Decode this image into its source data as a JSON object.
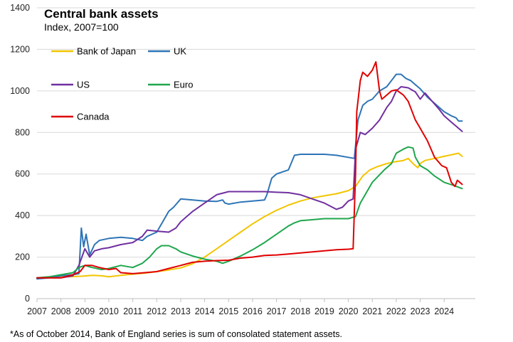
{
  "chart_data": {
    "type": "line",
    "title": "Central bank assets",
    "subtitle": "Index, 2007=100",
    "footnote": "*As of October 2014,  Bank of England series is sum of consolated statement assets.",
    "xlabel": "",
    "ylabel": "",
    "xlim": [
      2007,
      2025.3
    ],
    "ylim": [
      0,
      1400
    ],
    "x_ticks": [
      "2007",
      "2008",
      "2009",
      "2010",
      "2011",
      "2012",
      "2013",
      "2014",
      "2015",
      "2016",
      "2017",
      "2018",
      "2019",
      "2020",
      "2021",
      "2022",
      "2023",
      "2024"
    ],
    "y_ticks": [
      "0",
      "200",
      "400",
      "600",
      "800",
      "1000",
      "1200",
      "1400"
    ],
    "grid": "horizontal",
    "legend_position": "top-left",
    "series": [
      {
        "name": "Bank of Japan",
        "color": "#F2C500",
        "points": [
          [
            2007.0,
            100
          ],
          [
            2007.5,
            102
          ],
          [
            2008.0,
            104
          ],
          [
            2008.5,
            106
          ],
          [
            2008.9,
            108
          ],
          [
            2009.3,
            112
          ],
          [
            2009.7,
            110
          ],
          [
            2010.0,
            105
          ],
          [
            2010.5,
            112
          ],
          [
            2011.0,
            118
          ],
          [
            2011.5,
            123
          ],
          [
            2012.0,
            130
          ],
          [
            2012.5,
            138
          ],
          [
            2013.0,
            148
          ],
          [
            2013.5,
            168
          ],
          [
            2014.0,
            200
          ],
          [
            2014.5,
            240
          ],
          [
            2015.0,
            280
          ],
          [
            2015.5,
            320
          ],
          [
            2016.0,
            360
          ],
          [
            2016.5,
            395
          ],
          [
            2017.0,
            425
          ],
          [
            2017.5,
            450
          ],
          [
            2018.0,
            470
          ],
          [
            2018.5,
            485
          ],
          [
            2019.0,
            495
          ],
          [
            2019.5,
            505
          ],
          [
            2020.0,
            520
          ],
          [
            2020.3,
            540
          ],
          [
            2020.6,
            590
          ],
          [
            2020.9,
            620
          ],
          [
            2021.2,
            635
          ],
          [
            2021.6,
            650
          ],
          [
            2022.0,
            660
          ],
          [
            2022.3,
            665
          ],
          [
            2022.5,
            675
          ],
          [
            2022.7,
            650
          ],
          [
            2022.9,
            630
          ],
          [
            2023.0,
            650
          ],
          [
            2023.2,
            665
          ],
          [
            2023.6,
            675
          ],
          [
            2024.0,
            685
          ],
          [
            2024.4,
            695
          ],
          [
            2024.6,
            700
          ],
          [
            2024.75,
            685
          ]
        ]
      },
      {
        "name": "UK",
        "color": "#2E75B6",
        "points": [
          [
            2007.0,
            95
          ],
          [
            2007.5,
            100
          ],
          [
            2008.0,
            110
          ],
          [
            2008.5,
            115
          ],
          [
            2008.75,
            120
          ],
          [
            2008.85,
            340
          ],
          [
            2008.95,
            250
          ],
          [
            2009.05,
            310
          ],
          [
            2009.2,
            210
          ],
          [
            2009.4,
            260
          ],
          [
            2009.6,
            280
          ],
          [
            2010.0,
            290
          ],
          [
            2010.5,
            295
          ],
          [
            2011.0,
            290
          ],
          [
            2011.4,
            280
          ],
          [
            2011.6,
            300
          ],
          [
            2012.0,
            320
          ],
          [
            2012.3,
            380
          ],
          [
            2012.5,
            420
          ],
          [
            2012.7,
            440
          ],
          [
            2013.0,
            480
          ],
          [
            2013.5,
            475
          ],
          [
            2014.0,
            470
          ],
          [
            2014.5,
            468
          ],
          [
            2014.75,
            475
          ],
          [
            2014.85,
            460
          ],
          [
            2015.0,
            455
          ],
          [
            2015.5,
            465
          ],
          [
            2016.0,
            470
          ],
          [
            2016.5,
            475
          ],
          [
            2016.6,
            500
          ],
          [
            2016.8,
            580
          ],
          [
            2017.0,
            600
          ],
          [
            2017.5,
            620
          ],
          [
            2017.75,
            690
          ],
          [
            2018.0,
            695
          ],
          [
            2018.5,
            695
          ],
          [
            2019.0,
            695
          ],
          [
            2019.5,
            690
          ],
          [
            2020.0,
            680
          ],
          [
            2020.25,
            675
          ],
          [
            2020.4,
            860
          ],
          [
            2020.6,
            930
          ],
          [
            2020.8,
            950
          ],
          [
            2021.0,
            960
          ],
          [
            2021.3,
            1000
          ],
          [
            2021.6,
            1020
          ],
          [
            2021.8,
            1050
          ],
          [
            2022.0,
            1080
          ],
          [
            2022.2,
            1080
          ],
          [
            2022.4,
            1060
          ],
          [
            2022.6,
            1050
          ],
          [
            2022.8,
            1030
          ],
          [
            2023.0,
            1010
          ],
          [
            2023.3,
            970
          ],
          [
            2023.6,
            940
          ],
          [
            2024.0,
            900
          ],
          [
            2024.3,
            880
          ],
          [
            2024.5,
            870
          ],
          [
            2024.6,
            855
          ],
          [
            2024.75,
            855
          ]
        ]
      },
      {
        "name": "US",
        "color": "#7030A0",
        "points": [
          [
            2007.0,
            100
          ],
          [
            2007.5,
            100
          ],
          [
            2008.0,
            100
          ],
          [
            2008.5,
            110
          ],
          [
            2008.75,
            160
          ],
          [
            2009.0,
            240
          ],
          [
            2009.2,
            200
          ],
          [
            2009.4,
            230
          ],
          [
            2009.7,
            240
          ],
          [
            2010.0,
            245
          ],
          [
            2010.5,
            260
          ],
          [
            2011.0,
            270
          ],
          [
            2011.4,
            300
          ],
          [
            2011.6,
            330
          ],
          [
            2012.0,
            325
          ],
          [
            2012.5,
            320
          ],
          [
            2012.8,
            340
          ],
          [
            2013.0,
            370
          ],
          [
            2013.5,
            420
          ],
          [
            2014.0,
            460
          ],
          [
            2014.5,
            500
          ],
          [
            2015.0,
            515
          ],
          [
            2015.5,
            515
          ],
          [
            2016.0,
            515
          ],
          [
            2016.5,
            515
          ],
          [
            2017.0,
            512
          ],
          [
            2017.5,
            510
          ],
          [
            2018.0,
            500
          ],
          [
            2018.5,
            480
          ],
          [
            2019.0,
            460
          ],
          [
            2019.5,
            430
          ],
          [
            2019.75,
            440
          ],
          [
            2020.0,
            470
          ],
          [
            2020.2,
            480
          ],
          [
            2020.3,
            720
          ],
          [
            2020.5,
            800
          ],
          [
            2020.7,
            790
          ],
          [
            2021.0,
            820
          ],
          [
            2021.3,
            860
          ],
          [
            2021.6,
            920
          ],
          [
            2021.8,
            950
          ],
          [
            2022.0,
            1000
          ],
          [
            2022.2,
            1020
          ],
          [
            2022.5,
            1015
          ],
          [
            2022.8,
            995
          ],
          [
            2023.0,
            960
          ],
          [
            2023.2,
            990
          ],
          [
            2023.5,
            950
          ],
          [
            2023.8,
            910
          ],
          [
            2024.0,
            880
          ],
          [
            2024.3,
            850
          ],
          [
            2024.5,
            830
          ],
          [
            2024.75,
            805
          ]
        ]
      },
      {
        "name": "Euro",
        "color": "#1FA64D",
        "points": [
          [
            2007.0,
            100
          ],
          [
            2007.5,
            105
          ],
          [
            2008.0,
            115
          ],
          [
            2008.5,
            125
          ],
          [
            2008.75,
            150
          ],
          [
            2009.0,
            160
          ],
          [
            2009.3,
            150
          ],
          [
            2009.7,
            140
          ],
          [
            2010.0,
            145
          ],
          [
            2010.5,
            160
          ],
          [
            2011.0,
            150
          ],
          [
            2011.4,
            170
          ],
          [
            2011.7,
            200
          ],
          [
            2012.0,
            240
          ],
          [
            2012.2,
            255
          ],
          [
            2012.5,
            255
          ],
          [
            2012.8,
            240
          ],
          [
            2013.0,
            225
          ],
          [
            2013.5,
            205
          ],
          [
            2014.0,
            190
          ],
          [
            2014.5,
            180
          ],
          [
            2014.75,
            170
          ],
          [
            2015.0,
            180
          ],
          [
            2015.5,
            205
          ],
          [
            2016.0,
            235
          ],
          [
            2016.5,
            270
          ],
          [
            2017.0,
            310
          ],
          [
            2017.5,
            350
          ],
          [
            2017.75,
            365
          ],
          [
            2018.0,
            375
          ],
          [
            2018.5,
            380
          ],
          [
            2019.0,
            385
          ],
          [
            2019.5,
            385
          ],
          [
            2020.0,
            385
          ],
          [
            2020.3,
            395
          ],
          [
            2020.5,
            460
          ],
          [
            2020.8,
            520
          ],
          [
            2021.0,
            560
          ],
          [
            2021.5,
            620
          ],
          [
            2021.8,
            650
          ],
          [
            2022.0,
            700
          ],
          [
            2022.3,
            720
          ],
          [
            2022.5,
            730
          ],
          [
            2022.7,
            725
          ],
          [
            2022.8,
            680
          ],
          [
            2023.0,
            640
          ],
          [
            2023.3,
            620
          ],
          [
            2023.6,
            590
          ],
          [
            2024.0,
            560
          ],
          [
            2024.4,
            545
          ],
          [
            2024.75,
            530
          ]
        ]
      },
      {
        "name": "Canada",
        "color": "#E00000",
        "points": [
          [
            2007.0,
            100
          ],
          [
            2007.5,
            100
          ],
          [
            2008.0,
            100
          ],
          [
            2008.5,
            115
          ],
          [
            2008.8,
            130
          ],
          [
            2009.0,
            160
          ],
          [
            2009.3,
            160
          ],
          [
            2009.6,
            150
          ],
          [
            2010.0,
            140
          ],
          [
            2010.3,
            145
          ],
          [
            2010.5,
            125
          ],
          [
            2011.0,
            120
          ],
          [
            2011.5,
            125
          ],
          [
            2012.0,
            130
          ],
          [
            2012.5,
            145
          ],
          [
            2013.0,
            160
          ],
          [
            2013.5,
            175
          ],
          [
            2014.0,
            180
          ],
          [
            2014.5,
            183
          ],
          [
            2015.0,
            185
          ],
          [
            2015.5,
            195
          ],
          [
            2016.0,
            200
          ],
          [
            2016.5,
            208
          ],
          [
            2017.0,
            210
          ],
          [
            2017.5,
            215
          ],
          [
            2018.0,
            220
          ],
          [
            2018.5,
            225
          ],
          [
            2019.0,
            230
          ],
          [
            2019.5,
            235
          ],
          [
            2020.0,
            238
          ],
          [
            2020.2,
            240
          ],
          [
            2020.3,
            600
          ],
          [
            2020.35,
            900
          ],
          [
            2020.5,
            1050
          ],
          [
            2020.6,
            1090
          ],
          [
            2020.8,
            1070
          ],
          [
            2021.0,
            1100
          ],
          [
            2021.15,
            1140
          ],
          [
            2021.3,
            1000
          ],
          [
            2021.4,
            960
          ],
          [
            2021.6,
            980
          ],
          [
            2021.8,
            1000
          ],
          [
            2022.0,
            1005
          ],
          [
            2022.3,
            980
          ],
          [
            2022.5,
            950
          ],
          [
            2022.8,
            860
          ],
          [
            2023.0,
            820
          ],
          [
            2023.3,
            760
          ],
          [
            2023.6,
            680
          ],
          [
            2023.9,
            640
          ],
          [
            2024.1,
            630
          ],
          [
            2024.3,
            560
          ],
          [
            2024.45,
            540
          ],
          [
            2024.55,
            570
          ],
          [
            2024.75,
            550
          ]
        ]
      }
    ]
  }
}
